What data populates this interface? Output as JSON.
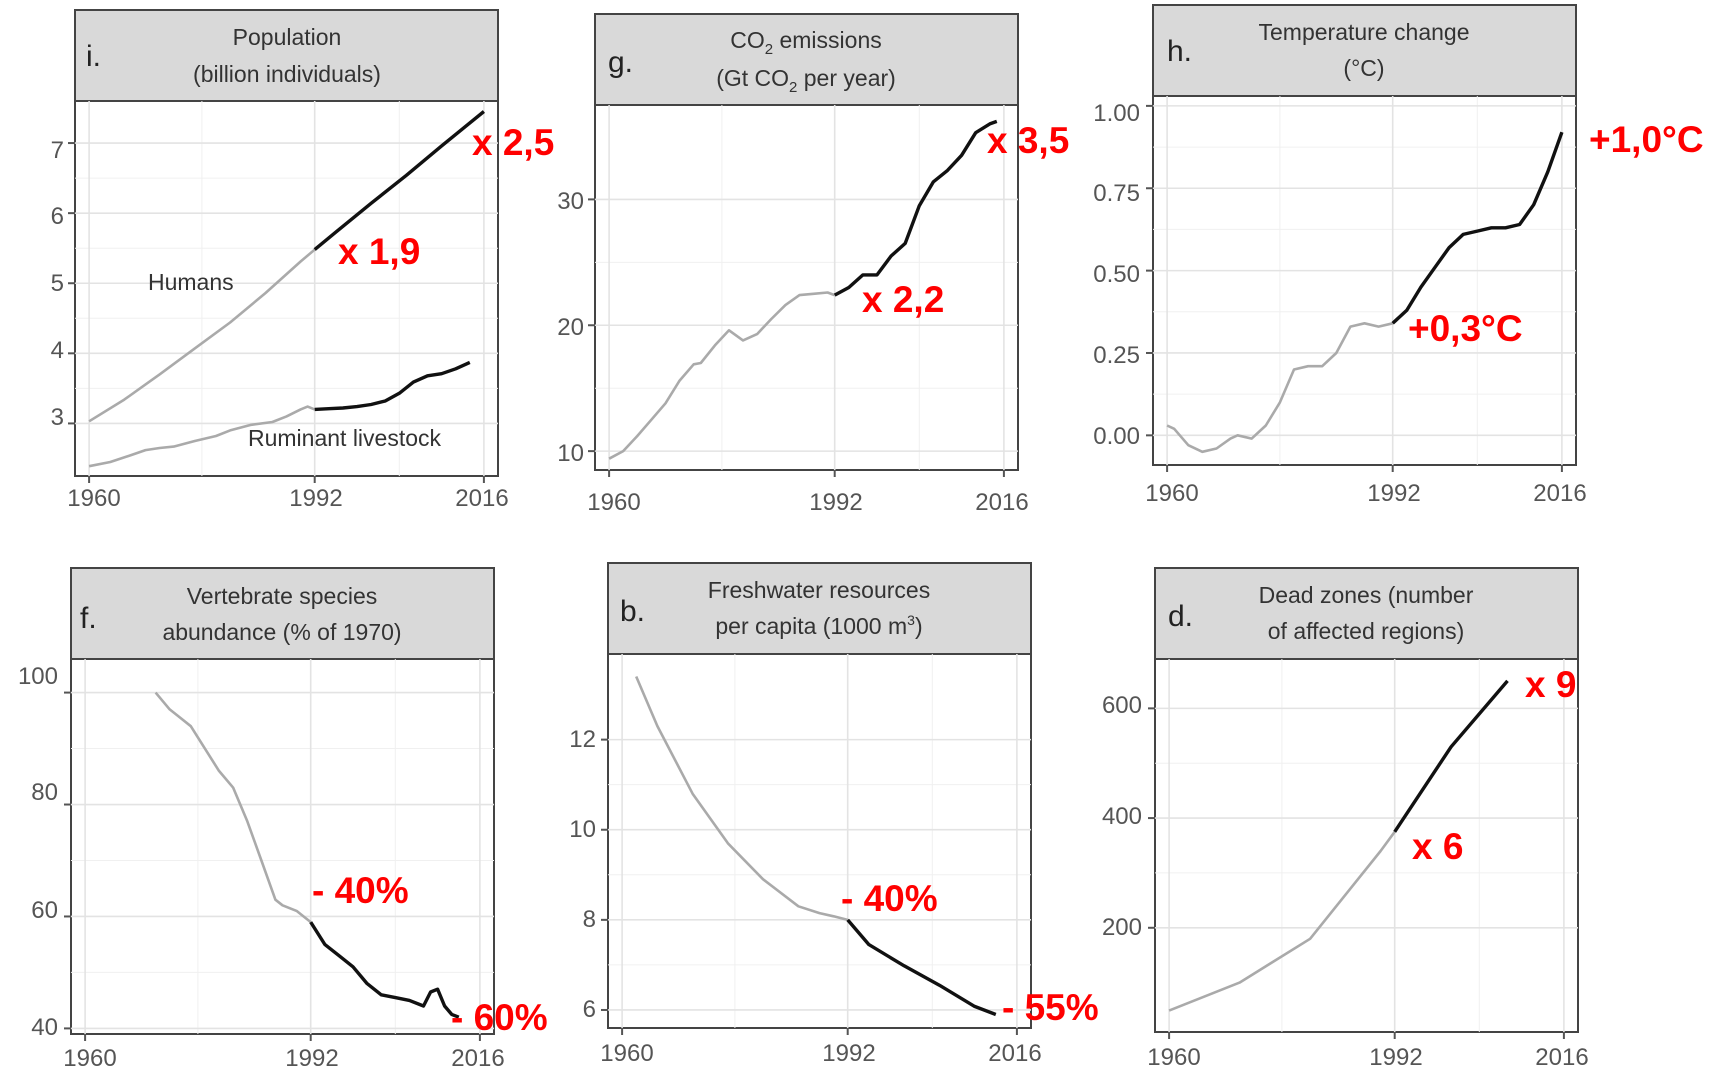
{
  "chart_data": [
    {
      "type": "line",
      "letter": "i.",
      "title": "Population",
      "subtitle": "(billion individuals)",
      "x_ticks": [
        "1960",
        "1992",
        "2016"
      ],
      "y_ticks": [
        "3",
        "4",
        "5",
        "6",
        "7"
      ],
      "xlim": [
        1958,
        2018
      ],
      "ylim": [
        2.25,
        7.6
      ],
      "highlight_from": 1992,
      "series": [
        {
          "name": "Humans",
          "x": [
            1960,
            1965,
            1970,
            1975,
            1980,
            1985,
            1990,
            1992,
            1995,
            2000,
            2005,
            2010,
            2016
          ],
          "values": [
            3.03,
            3.34,
            3.7,
            4.07,
            4.44,
            4.86,
            5.31,
            5.48,
            5.73,
            6.14,
            6.54,
            6.96,
            7.45
          ]
        },
        {
          "name": "Ruminant livestock",
          "x": [
            1960,
            1963,
            1966,
            1968,
            1970,
            1972,
            1975,
            1978,
            1980,
            1983,
            1986,
            1988,
            1990,
            1991,
            1992,
            1994,
            1996,
            1998,
            2000,
            2002,
            2004,
            2006,
            2008,
            2010,
            2012,
            2014
          ],
          "values": [
            2.39,
            2.45,
            2.55,
            2.62,
            2.65,
            2.67,
            2.75,
            2.82,
            2.9,
            2.98,
            3.02,
            3.1,
            3.2,
            3.24,
            3.2,
            3.21,
            3.22,
            3.24,
            3.27,
            3.32,
            3.43,
            3.59,
            3.68,
            3.71,
            3.78,
            3.87
          ]
        }
      ],
      "series_labels": [
        "Humans",
        "Ruminant livestock"
      ],
      "annotations": [
        "x 2,5",
        "x 1,9"
      ]
    },
    {
      "type": "line",
      "letter": "g.",
      "title": "CO2 emissions",
      "title_parts": [
        "CO",
        "2",
        " emissions"
      ],
      "subtitle_parts": [
        "(Gt CO",
        "2",
        " per year)"
      ],
      "x_ticks": [
        "1960",
        "1992",
        "2016"
      ],
      "y_ticks": [
        "10",
        "20",
        "30"
      ],
      "xlim": [
        1958,
        2018
      ],
      "ylim": [
        8.5,
        37.5
      ],
      "highlight_from": 1992,
      "series": [
        {
          "name": "",
          "x": [
            1960,
            1962,
            1964,
            1966,
            1968,
            1970,
            1972,
            1973,
            1975,
            1977,
            1979,
            1981,
            1983,
            1985,
            1987,
            1989,
            1991,
            1992,
            1994,
            1996,
            1998,
            2000,
            2002,
            2004,
            2006,
            2008,
            2010,
            2012,
            2014,
            2015
          ],
          "values": [
            9.4,
            10.0,
            11.2,
            12.5,
            13.8,
            15.6,
            16.9,
            17.0,
            18.4,
            19.6,
            18.8,
            19.3,
            20.5,
            21.6,
            22.4,
            22.5,
            22.6,
            22.4,
            23.0,
            24.0,
            24.0,
            25.5,
            26.5,
            29.5,
            31.4,
            32.3,
            33.5,
            35.3,
            36.0,
            36.2
          ]
        }
      ],
      "annotations": [
        "x 3,5",
        "x 2,2"
      ]
    },
    {
      "type": "line",
      "letter": "h.",
      "title": "Temperature change",
      "subtitle": "(°C)",
      "x_ticks": [
        "1960",
        "1992",
        "2016"
      ],
      "y_ticks": [
        "0.00",
        "0.25",
        "0.50",
        "0.75",
        "1.00"
      ],
      "xlim": [
        1958,
        2018
      ],
      "ylim": [
        -0.09,
        1.03
      ],
      "highlight_from": 1992,
      "series": [
        {
          "name": "",
          "x": [
            1960,
            1961,
            1963,
            1965,
            1967,
            1969,
            1970,
            1972,
            1974,
            1976,
            1978,
            1980,
            1982,
            1984,
            1986,
            1988,
            1990,
            1992,
            1994,
            1996,
            1998,
            2000,
            2002,
            2004,
            2006,
            2008,
            2010,
            2012,
            2014,
            2016
          ],
          "values": [
            0.03,
            0.02,
            -0.03,
            -0.05,
            -0.04,
            -0.01,
            0.0,
            -0.01,
            0.03,
            0.1,
            0.2,
            0.21,
            0.21,
            0.25,
            0.33,
            0.34,
            0.33,
            0.34,
            0.38,
            0.45,
            0.51,
            0.57,
            0.61,
            0.62,
            0.63,
            0.63,
            0.64,
            0.7,
            0.8,
            0.92
          ]
        }
      ],
      "annotations": [
        "+1,0°C",
        "+0,3°C"
      ]
    },
    {
      "type": "line",
      "letter": "f.",
      "title": "Vertebrate species",
      "subtitle": "abundance (% of 1970)",
      "x_ticks": [
        "1960",
        "1992",
        "2016"
      ],
      "y_ticks": [
        "40",
        "60",
        "80",
        "100"
      ],
      "xlim": [
        1958,
        2018
      ],
      "ylim": [
        39,
        106
      ],
      "highlight_from": 1992,
      "series": [
        {
          "name": "",
          "x": [
            1970,
            1972,
            1973,
            1975,
            1977,
            1979,
            1981,
            1983,
            1985,
            1987,
            1988,
            1990,
            1992,
            1994,
            1996,
            1998,
            2000,
            2002,
            2004,
            2006,
            2008,
            2009,
            2010,
            2011,
            2012,
            2013
          ],
          "values": [
            100,
            97,
            96,
            94,
            90,
            86,
            83,
            77,
            70,
            63,
            62,
            61,
            59,
            55,
            53,
            51,
            48,
            46,
            45.5,
            45,
            44,
            46.5,
            47,
            44,
            42.5,
            42
          ]
        }
      ],
      "annotations": [
        "- 40%",
        "- 60%"
      ]
    },
    {
      "type": "line",
      "letter": "b.",
      "title": "Freshwater resources",
      "subtitle_parts": [
        "per capita (1000 m",
        "3",
        ")"
      ],
      "x_ticks": [
        "1960",
        "1992",
        "2016"
      ],
      "y_ticks": [
        "6",
        "8",
        "10",
        "12"
      ],
      "xlim": [
        1958,
        2018
      ],
      "ylim": [
        5.6,
        13.9
      ],
      "highlight_from": 1992,
      "series": [
        {
          "name": "",
          "x": [
            1962,
            1965,
            1970,
            1975,
            1980,
            1985,
            1988,
            1990,
            1992,
            1995,
            2000,
            2005,
            2010,
            2013
          ],
          "values": [
            13.4,
            12.3,
            10.8,
            9.7,
            8.9,
            8.3,
            8.15,
            8.08,
            8.0,
            7.45,
            6.98,
            6.55,
            6.08,
            5.9
          ]
        }
      ],
      "annotations": [
        "- 40%",
        "- 55%"
      ]
    },
    {
      "type": "line",
      "letter": "d.",
      "title": "Dead zones (number",
      "subtitle": "of affected regions)",
      "x_ticks": [
        "1960",
        "1992",
        "2016"
      ],
      "y_ticks": [
        "200",
        "400",
        "600"
      ],
      "xlim": [
        1958,
        2018
      ],
      "ylim": [
        10,
        690
      ],
      "highlight_from": 1992,
      "series": [
        {
          "name": "",
          "x": [
            1960,
            1970,
            1980,
            1990,
            1992,
            2000,
            2008
          ],
          "values": [
            49,
            100,
            180,
            340,
            375,
            530,
            650
          ]
        }
      ],
      "annotations": [
        "x 9",
        "x 6"
      ]
    }
  ]
}
